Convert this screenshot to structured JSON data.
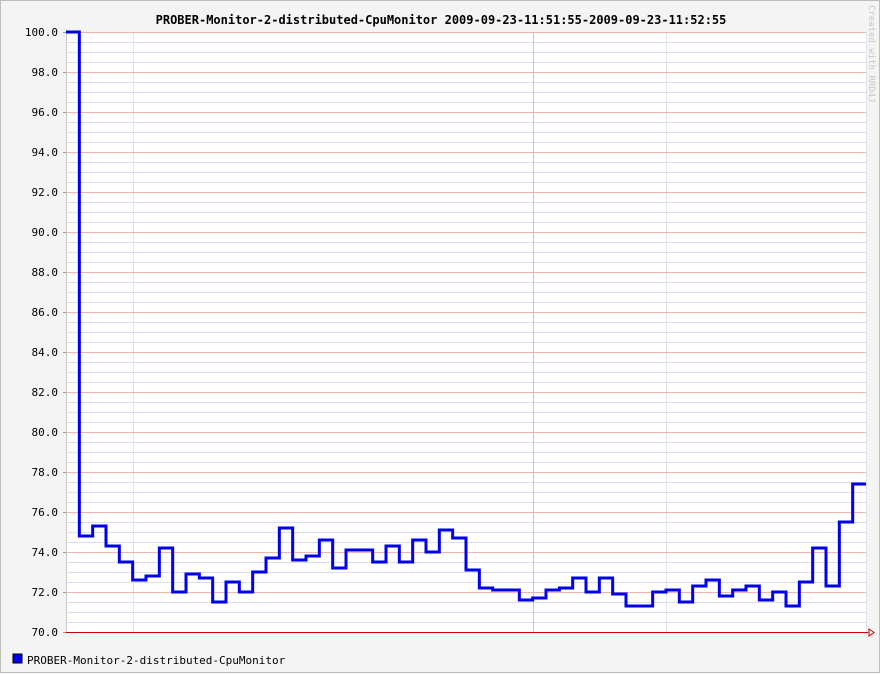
{
  "chart_data": {
    "type": "line",
    "step": true,
    "title": "PROBER-Monitor-2-distributed-CpuMonitor 2009-09-23-11:51:55-2009-09-23-11:52:55",
    "xlabel": "",
    "ylabel": "",
    "ylim": [
      70,
      100
    ],
    "y_ticks": [
      "100.0",
      "98.0",
      "96.0",
      "94.0",
      "92.0",
      "90.0",
      "88.0",
      "86.0",
      "84.0",
      "82.0",
      "80.0",
      "78.0",
      "76.0",
      "74.0",
      "72.0",
      "70.0"
    ],
    "grid": true,
    "legend_position": "bottom-left",
    "series": [
      {
        "name": "PROBER-Monitor-2-distributed-CpuMonitor",
        "color": "#0000ee",
        "x": [
          0,
          1,
          2,
          3,
          4,
          5,
          6,
          7,
          8,
          9,
          10,
          11,
          12,
          13,
          14,
          15,
          16,
          17,
          18,
          19,
          20,
          21,
          22,
          23,
          24,
          25,
          26,
          27,
          28,
          29,
          30,
          31,
          32,
          33,
          34,
          35,
          36,
          37,
          38,
          39,
          40,
          41,
          42,
          43,
          44,
          45,
          46,
          47,
          48,
          49,
          50,
          51,
          52,
          53,
          54,
          55,
          56,
          57,
          58,
          59,
          60
        ],
        "values": [
          100.0,
          74.8,
          75.3,
          74.3,
          73.5,
          72.6,
          72.8,
          74.2,
          72.0,
          72.9,
          72.7,
          71.5,
          72.5,
          72.0,
          73.0,
          73.7,
          75.2,
          73.6,
          73.8,
          74.6,
          73.2,
          74.1,
          74.1,
          73.5,
          74.3,
          73.5,
          74.6,
          74.0,
          75.1,
          74.7,
          73.1,
          72.2,
          72.1,
          72.1,
          71.6,
          71.7,
          72.1,
          72.2,
          72.7,
          72.0,
          72.7,
          71.9,
          71.3,
          71.3,
          72.0,
          72.1,
          71.5,
          72.3,
          72.6,
          71.8,
          72.1,
          72.3,
          71.6,
          72.0,
          71.3,
          72.5,
          74.2,
          72.3,
          75.5,
          77.4,
          77.4
        ]
      }
    ]
  },
  "footer": {
    "signature": "Created with RRD4J"
  }
}
